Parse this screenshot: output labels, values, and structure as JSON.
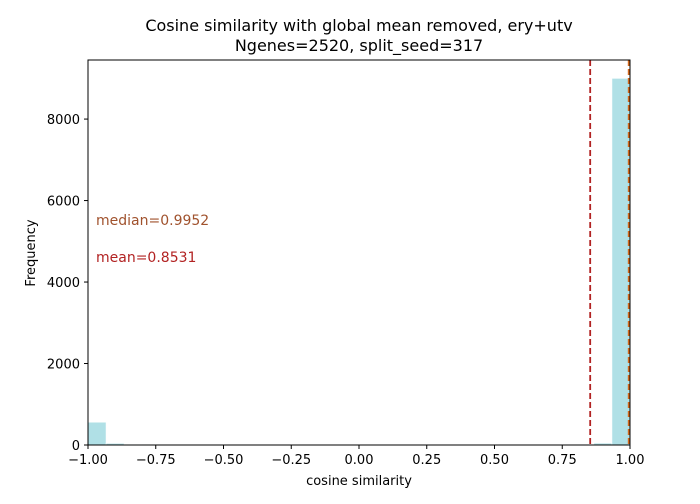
{
  "chart_data": {
    "type": "bar",
    "title": "Cosine similarity with global mean removed, ery+utv",
    "subtitle": "Ngenes=2520, split_seed=317",
    "xlabel": "cosine similarity",
    "ylabel": "Frequency",
    "xlim": [
      -1.0,
      1.0
    ],
    "ylim": [
      0,
      9450
    ],
    "xticks": [
      -1.0,
      -0.75,
      -0.5,
      -0.25,
      0.0,
      0.25,
      0.5,
      0.75,
      1.0
    ],
    "xtick_labels": [
      "−1.00",
      "−0.75",
      "−0.50",
      "−0.25",
      "0.00",
      "0.25",
      "0.50",
      "0.75",
      "1.00"
    ],
    "yticks": [
      0,
      2000,
      4000,
      6000,
      8000
    ],
    "ytick_labels": [
      "0",
      "2000",
      "4000",
      "6000",
      "8000"
    ],
    "bin_edges": [
      -1.0,
      -0.9333,
      -0.8667,
      -0.8,
      -0.7333,
      -0.6667,
      -0.6,
      -0.5333,
      -0.4667,
      -0.4,
      -0.3333,
      -0.2667,
      -0.2,
      -0.1333,
      -0.0667,
      0.0,
      0.0667,
      0.1333,
      0.2,
      0.2667,
      0.3333,
      0.4,
      0.4667,
      0.5333,
      0.6,
      0.6667,
      0.7333,
      0.8,
      0.8667,
      0.9333,
      1.0
    ],
    "values": [
      560,
      40,
      20,
      15,
      10,
      12,
      8,
      6,
      5,
      4,
      4,
      3,
      3,
      3,
      3,
      3,
      3,
      3,
      3,
      3,
      3,
      4,
      4,
      5,
      6,
      8,
      12,
      20,
      45,
      9000
    ],
    "bar_color": "#b0e0e6",
    "annotations": [
      {
        "label": "median=0.9952",
        "value": 0.9952,
        "color": "#a0522d"
      },
      {
        "label": "mean=0.8531",
        "value": 0.8531,
        "color": "#b22222"
      }
    ],
    "vlines": [
      {
        "x": 0.8531,
        "color": "#b22222",
        "style": "dashed"
      },
      {
        "x": 0.9952,
        "color": "#d2691e",
        "style": "dashed"
      }
    ],
    "grid": false
  }
}
